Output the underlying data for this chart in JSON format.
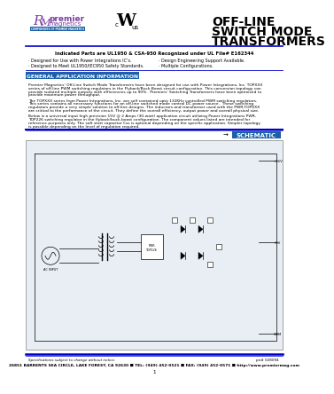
{
  "title_line1": "OFF-LINE",
  "title_line2": "SWITCH MODE",
  "title_line3": "TRANSFORMERS",
  "indicated_parts": "Indicated Parts are UL1950 & CSA-950 Recognized under UL File# E162344",
  "bullet1_left": "· Designed for Use with Power Integrations IC’s.",
  "bullet2_left": "· Designed to Meet UL1950/IEC950 Safety Standards.",
  "bullet1_right": "· Design Engineering Support Available.",
  "bullet2_right": "· Multiple Configurations.",
  "section_title": "GENERAL APPLICATION INFORMATION",
  "para1a": "Premier Magnetics' Off-Line Switch Mode Transformers have been designed for use with Power Integrations, Inc. TOPXXX",
  "para1b": "series of off-line PWM switching regulators in the Flyback/Buck-Boost circuit configuration. This conversion topology can",
  "para1c": "provide isolated multiple outputs with efficiencies up to 90%.  Premiers' Switching Transformers have been optimized to",
  "para1d": "provide maximum power throughput.",
  "para2a": "The TOPXXX series from Power Integrations, Inc. are self contained upto 132KHz controlled PWM switching regulators.",
  "para2b": "This series contains all necessary functions for an off-line switched mode control DC power source.  These switching",
  "para2c": "regulators provide a very simple solution to off-line designs. The inductors and transformer used with the PWR-TOPXXX",
  "para2d": "are critical to the performance of the circuit. They define the overall efficiency, output power and overall physical size.",
  "para3a": "Below is a universal input high precision 15V @ 2 Amps (30-watt) application circuit utilizing Power Integrations PWR-",
  "para3b": "TOP226 switching regulator in the flyback/buck-boost configuration. The component values listed are intended for",
  "para3c": "reference purposes only. The soft start capacitor Css is optional depending on the specific application. Simpler topology",
  "para3d": "is possible depending on the level of regulation required.",
  "schematic_label": "SCHEMATIC",
  "footer_note": "Specifications subject to change without notice.",
  "footer_part": "pn# 028094",
  "footer_address": "26851 BARRENTS SEA CIRCLE, LAKE FOREST, CA 92630 ■ TEL: (949) 452-0521 ■ FAX: (949) 452-0571 ■ http://www.premiermag.com",
  "footer_page": "1",
  "bg_color": "#ffffff",
  "header_line_color": "#0000cc",
  "section_header_bg": "#1a5fa8",
  "section_header_fg": "#ffffff",
  "schematic_label_bg": "#1a5fa8",
  "schematic_label_fg": "#ffffff",
  "footer_line_color": "#0000cc",
  "logo_purple": "#7b3f9e",
  "logo_blue": "#1a5fa8",
  "text_color": "#000000"
}
